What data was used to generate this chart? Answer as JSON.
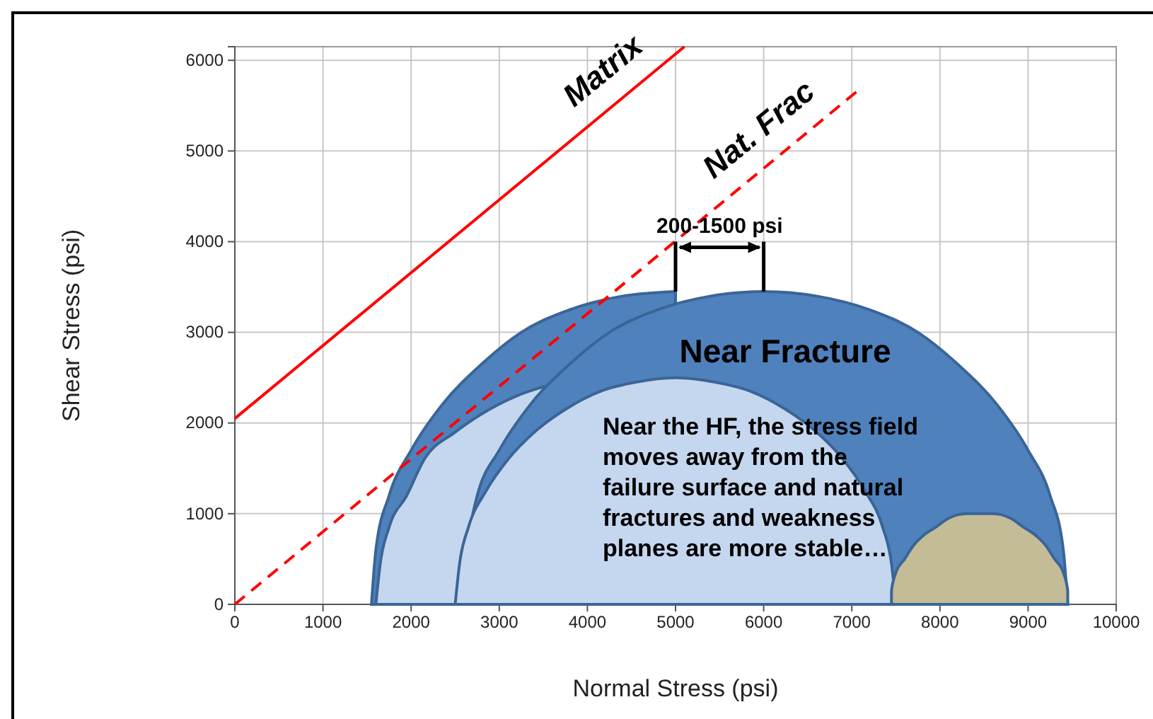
{
  "chart_data": {
    "type": "line",
    "xlabel": "Normal  Stress (psi)",
    "ylabel": "Shear Stress (psi)",
    "xlim": [
      0,
      10000
    ],
    "xticks": [
      0,
      1000,
      2000,
      3000,
      4000,
      5000,
      6000,
      7000,
      8000,
      9000,
      10000
    ],
    "ylim": [
      0,
      6150
    ],
    "yticks": [
      0,
      1000,
      2000,
      3000,
      4000,
      5000,
      6000
    ],
    "grid": true,
    "marker": "none",
    "series": [
      {
        "type": "area",
        "color": "#4f81bd",
        "x": [
          1550,
          1600,
          1750,
          2000,
          2350,
          2800,
          3250,
          3800,
          4400,
          5000
        ],
        "values": [
          0,
          600,
          1200,
          1700,
          2200,
          2650,
          3000,
          3250,
          3400,
          3450
        ]
      },
      {
        "type": "area",
        "color": "#c5d7ef",
        "x": [
          1600,
          1650,
          1750,
          1950,
          2150,
          2500,
          2800,
          3200,
          3500
        ],
        "values": [
          0,
          450,
          850,
          1200,
          1600,
          1900,
          2100,
          2300,
          2400
        ]
      },
      {
        "type": "area",
        "color": "#4f81bd",
        "x": [
          2700,
          2750,
          3000,
          3350,
          3800,
          4250,
          4800,
          5400,
          6000,
          6600,
          7200,
          7750,
          8200,
          8650,
          9000,
          9250,
          9400,
          9450
        ],
        "values": [
          1000,
          1200,
          1700,
          2200,
          2650,
          3000,
          3250,
          3400,
          3450,
          3400,
          3250,
          3000,
          2650,
          2200,
          1700,
          1200,
          600,
          0
        ]
      },
      {
        "type": "area",
        "color": "#c5d7ef",
        "x": [
          2500,
          2550,
          2650,
          2850,
          3100,
          3400,
          3750,
          4150,
          4550,
          5000,
          5450,
          5850,
          6250,
          6600,
          6900,
          7150,
          7350,
          7450,
          7500
        ],
        "values": [
          0,
          450,
          850,
          1250,
          1600,
          1900,
          2150,
          2350,
          2450,
          2500,
          2450,
          2350,
          2150,
          1900,
          1600,
          1250,
          850,
          450,
          0
        ]
      },
      {
        "type": "area",
        "color": "#c4bc96",
        "x": [
          7450,
          7450,
          7500,
          7600,
          7700,
          7800,
          7950,
          8100,
          8300,
          8450,
          8600,
          8800,
          8950,
          9100,
          9200,
          9300,
          9400,
          9450,
          9450
        ],
        "values": [
          0,
          150,
          350,
          500,
          650,
          750,
          850,
          950,
          1000,
          1000,
          1000,
          950,
          850,
          750,
          650,
          500,
          350,
          150,
          0
        ]
      },
      {
        "name": "Matrix",
        "color": "#ff0000",
        "line_style": "solid",
        "x": [
          0,
          5100
        ],
        "values": [
          2050,
          6150
        ]
      },
      {
        "name": "Nat. Frac",
        "color": "#ff0000",
        "line_style": "dashed",
        "x": [
          0,
          7050
        ],
        "values": [
          0,
          5650
        ]
      }
    ],
    "annotations": [
      {
        "text": "200-1500 psi",
        "x": 5000,
        "y": 4000
      },
      "Near Fracture",
      "Near the HF, the stress field moves away from the failure surface and natural fractures and weakness planes are more stable…"
    ]
  }
}
